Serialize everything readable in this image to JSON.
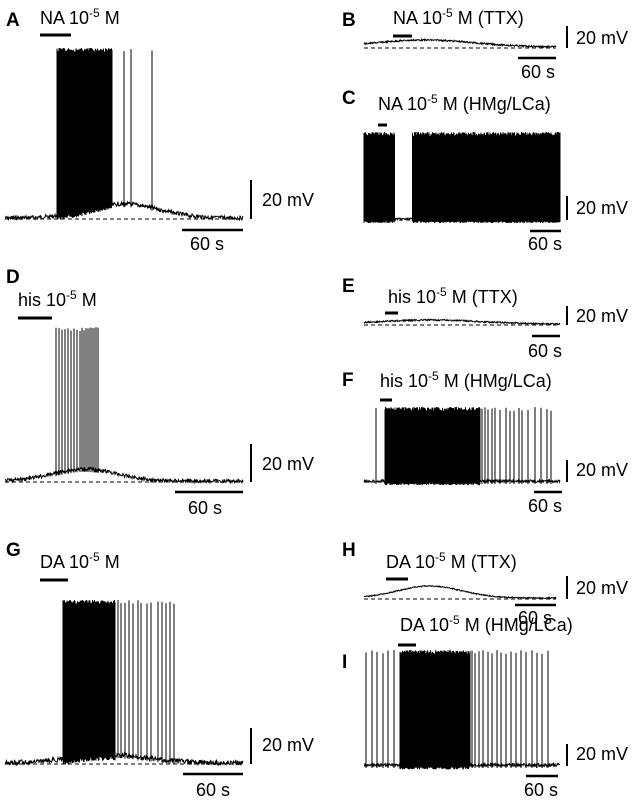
{
  "sup_exp": "-5",
  "panels": [
    {
      "id": "A",
      "label": "A",
      "drug": "NA 10",
      "cond": " M",
      "mode": "tonic",
      "scale_v": "20 mV",
      "scale_t": "60 s"
    },
    {
      "id": "B",
      "label": "B",
      "drug": "NA 10",
      "cond": " M (TTX)",
      "mode": "ttx",
      "scale_v": "20 mV",
      "scale_t": "60 s"
    },
    {
      "id": "C",
      "label": "C",
      "drug": "NA 10",
      "cond": " M (HMg/LCa)",
      "mode": "hmg",
      "scale_v": "20 mV",
      "scale_t": "60 s"
    },
    {
      "id": "D",
      "label": "D",
      "drug": "his 10",
      "cond": " M",
      "mode": "burst",
      "scale_v": "20 mV",
      "scale_t": "60 s"
    },
    {
      "id": "E",
      "label": "E",
      "drug": "his 10",
      "cond": " M (TTX)",
      "mode": "ttx",
      "scale_v": "20 mV",
      "scale_t": "60 s"
    },
    {
      "id": "F",
      "label": "F",
      "drug": "his 10",
      "cond": " M (HMg/LCa)",
      "mode": "hmg",
      "scale_v": "20 mV",
      "scale_t": "60 s"
    },
    {
      "id": "G",
      "label": "G",
      "drug": "DA 10",
      "cond": " M",
      "mode": "tonic",
      "scale_v": "20 mV",
      "scale_t": "60 s"
    },
    {
      "id": "H",
      "label": "H",
      "drug": "DA 10",
      "cond": " M (TTX)",
      "mode": "ttx",
      "scale_v": "20 mV",
      "scale_t": "60 s"
    },
    {
      "id": "I",
      "label": "I",
      "drug": "DA 10",
      "cond": " M (HMg/LCa)",
      "mode": "hmg",
      "scale_v": "20 mV",
      "scale_t": "60 s"
    }
  ]
}
